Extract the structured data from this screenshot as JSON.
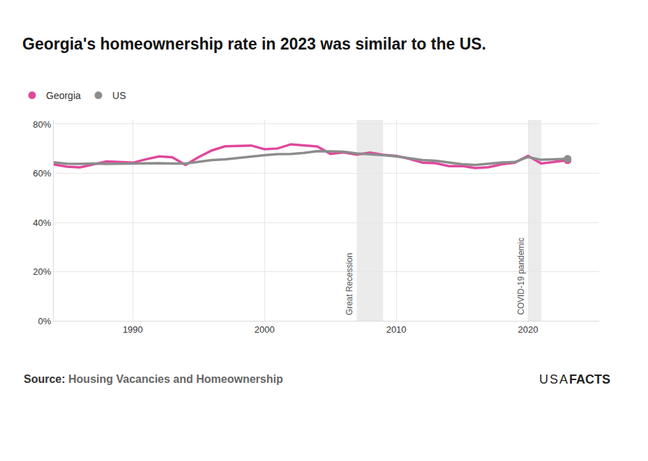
{
  "chart_data": {
    "type": "line",
    "title": "Georgia's homeownership rate in 2023 was similar to the US.",
    "x": [
      1984,
      1985,
      1986,
      1987,
      1988,
      1989,
      1990,
      1991,
      1992,
      1993,
      1994,
      1995,
      1996,
      1997,
      1998,
      1999,
      2000,
      2001,
      2002,
      2003,
      2004,
      2005,
      2006,
      2007,
      2008,
      2009,
      2010,
      2011,
      2012,
      2013,
      2014,
      2015,
      2016,
      2017,
      2018,
      2019,
      2020,
      2021,
      2022,
      2023
    ],
    "series": [
      {
        "name": "Georgia",
        "color": "#e0489c",
        "marker": "end",
        "values": [
          63.6,
          62.7,
          62.4,
          63.6,
          64.8,
          64.6,
          64.3,
          65.7,
          66.9,
          66.5,
          63.4,
          66.6,
          69.3,
          71.0,
          71.2,
          71.3,
          69.8,
          70.1,
          71.8,
          71.4,
          70.9,
          67.9,
          68.5,
          67.6,
          68.4,
          67.5,
          67.1,
          65.9,
          64.3,
          64.1,
          62.9,
          63.0,
          62.1,
          62.5,
          63.7,
          64.3,
          67.1,
          64.0,
          64.6,
          65.3
        ]
      },
      {
        "name": "US",
        "color": "#8c8c8c",
        "marker": "end",
        "values": [
          64.5,
          63.9,
          63.8,
          64.0,
          63.8,
          63.9,
          63.9,
          64.1,
          64.1,
          64.0,
          64.0,
          64.7,
          65.4,
          65.7,
          66.3,
          66.8,
          67.4,
          67.8,
          67.9,
          68.3,
          69.0,
          68.9,
          68.8,
          68.1,
          67.8,
          67.4,
          66.9,
          66.1,
          65.4,
          65.1,
          64.5,
          63.7,
          63.4,
          63.9,
          64.4,
          64.6,
          66.6,
          65.5,
          65.8,
          65.9
        ]
      }
    ],
    "xlim": [
      1984,
      2025.4
    ],
    "xticks": [
      1990,
      2000,
      2010,
      2020
    ],
    "ylim": [
      0,
      81.7
    ],
    "yticks": [
      {
        "value": 0,
        "label": "0%"
      },
      {
        "value": 20,
        "label": "20%"
      },
      {
        "value": 40,
        "label": "40%"
      },
      {
        "value": 60,
        "label": "60%"
      },
      {
        "value": 80,
        "label": "80%"
      }
    ],
    "grid": true,
    "legend": "top left",
    "shaded_regions": [
      {
        "label": "Great Recession",
        "start": 2007,
        "end": 2009
      },
      {
        "label": "COVID-19 pandemic",
        "start": 2020,
        "end": 2021
      }
    ],
    "source_label": "Source:",
    "source": "Housing Vacancies and Homeownership",
    "logo_text": [
      "USA",
      "FACTS"
    ]
  }
}
